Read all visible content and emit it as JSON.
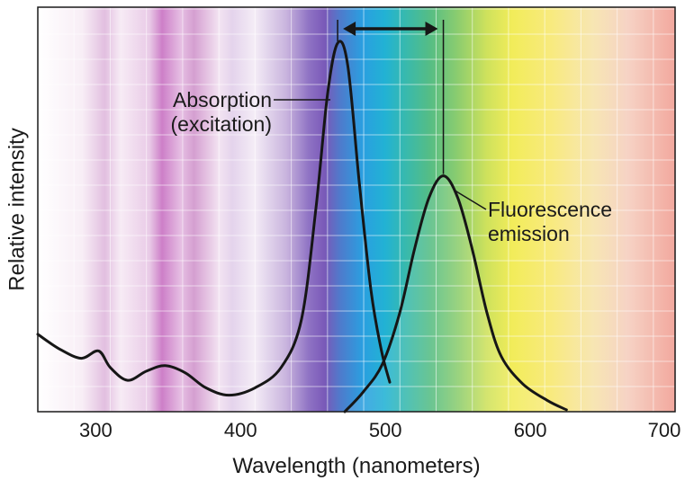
{
  "chart_data": {
    "type": "line",
    "title": "",
    "xlabel": "Wavelength (nanometers)",
    "ylabel": "Relative intensity",
    "xlim": [
      260,
      700
    ],
    "ylim": [
      0,
      1
    ],
    "x_ticks": [
      300,
      400,
      500,
      600,
      700
    ],
    "grid": true,
    "background": "visible light spectrum gradient",
    "series": [
      {
        "name": "Absorption (excitation)",
        "points": [
          [
            260,
            0.21
          ],
          [
            275,
            0.17
          ],
          [
            290,
            0.145
          ],
          [
            302,
            0.165
          ],
          [
            310,
            0.12
          ],
          [
            322,
            0.085
          ],
          [
            335,
            0.11
          ],
          [
            348,
            0.125
          ],
          [
            362,
            0.105
          ],
          [
            376,
            0.065
          ],
          [
            392,
            0.045
          ],
          [
            410,
            0.065
          ],
          [
            428,
            0.12
          ],
          [
            442,
            0.25
          ],
          [
            452,
            0.55
          ],
          [
            460,
            0.86
          ],
          [
            467,
            1.0
          ],
          [
            474,
            0.94
          ],
          [
            482,
            0.62
          ],
          [
            490,
            0.33
          ],
          [
            497,
            0.17
          ],
          [
            503,
            0.08
          ]
        ]
      },
      {
        "name": "Fluorescence emission",
        "points": [
          [
            472,
            0.0
          ],
          [
            485,
            0.055
          ],
          [
            498,
            0.13
          ],
          [
            510,
            0.27
          ],
          [
            520,
            0.44
          ],
          [
            530,
            0.58
          ],
          [
            540,
            0.64
          ],
          [
            550,
            0.58
          ],
          [
            560,
            0.44
          ],
          [
            570,
            0.27
          ],
          [
            580,
            0.15
          ],
          [
            595,
            0.075
          ],
          [
            612,
            0.03
          ],
          [
            625,
            0.005
          ]
        ]
      }
    ],
    "annotations": [
      {
        "text_lines": [
          "Absorption",
          "(excitation)"
        ],
        "target": "Absorption (excitation)"
      },
      {
        "text_lines": [
          "Fluorescence",
          "emission"
        ],
        "target": "Fluorescence emission"
      }
    ],
    "stokes_shift_arrow": {
      "from_x": 467,
      "to_x": 540
    }
  }
}
